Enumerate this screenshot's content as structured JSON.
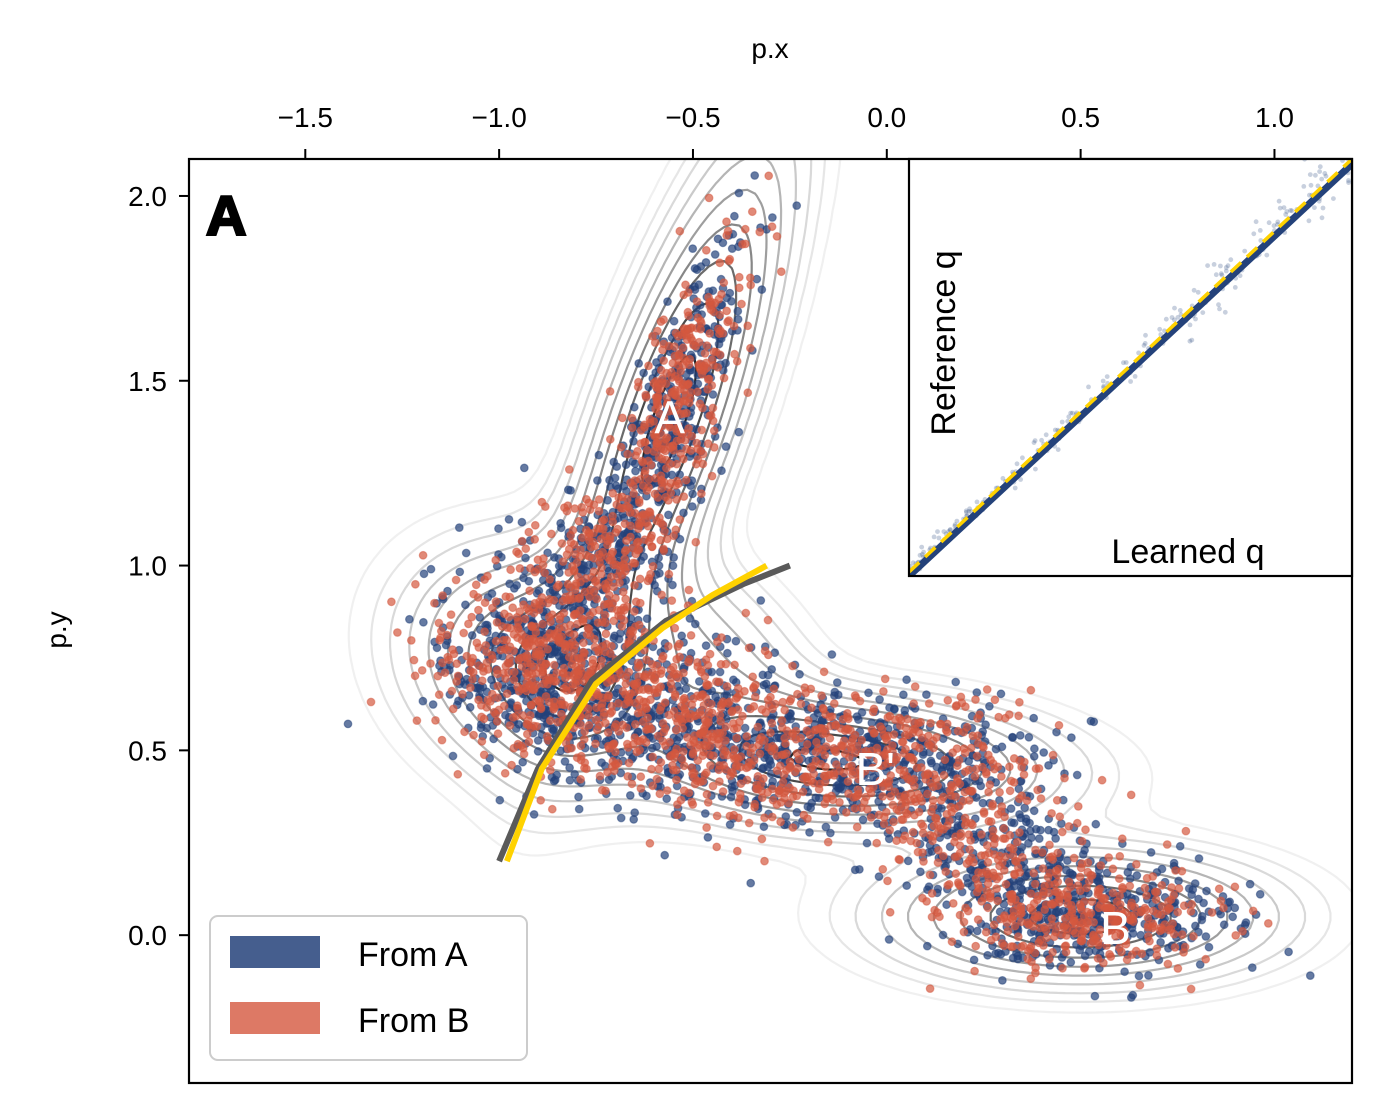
{
  "chart_data": {
    "type": "scatter",
    "panel_label": "A",
    "xlabel": "p.x",
    "ylabel": "p.y",
    "xlim": [
      -1.8,
      1.2
    ],
    "ylim": [
      -0.4,
      2.1
    ],
    "x_ticks": [
      -1.5,
      -1.0,
      -0.5,
      0.0,
      0.5,
      1.0
    ],
    "x_tick_labels": [
      "−1.5",
      "−1.0",
      "−0.5",
      "0.0",
      "0.5",
      "1.0"
    ],
    "y_ticks": [
      2.0,
      1.5,
      1.0,
      0.5,
      0.0
    ],
    "y_tick_labels": [
      "2.0",
      "1.5",
      "1.0",
      "0.5",
      "0.0"
    ],
    "basins": [
      {
        "label": "A",
        "x": -0.56,
        "y": 1.4
      },
      {
        "label": "B'",
        "x": -0.03,
        "y": 0.45
      },
      {
        "label": "B",
        "x": 0.59,
        "y": 0.02
      }
    ],
    "series": [
      {
        "name": "From A",
        "color": "#24427a"
      },
      {
        "name": "From B",
        "color": "#d4583f"
      }
    ],
    "isocommittor_reference": {
      "color": "#5a5a5a",
      "points": [
        [
          -1.0,
          0.2
        ],
        [
          -0.9,
          0.45
        ],
        [
          -0.76,
          0.69
        ],
        [
          -0.57,
          0.85
        ],
        [
          -0.37,
          0.95
        ],
        [
          -0.25,
          1.0
        ]
      ]
    },
    "isocommittor_learned": {
      "color": "#ffd200",
      "points": [
        [
          -0.98,
          0.2
        ],
        [
          -0.89,
          0.45
        ],
        [
          -0.75,
          0.68
        ],
        [
          -0.58,
          0.83
        ],
        [
          -0.45,
          0.92
        ],
        [
          -0.31,
          1.0
        ]
      ]
    },
    "legend": {
      "location": "lower-left",
      "entries": [
        "From A",
        "From B"
      ]
    },
    "inset": {
      "type": "scatter",
      "xlabel": "Learned q",
      "ylabel": "Reference q",
      "xlim": [
        0,
        1
      ],
      "ylim": [
        0,
        1
      ],
      "diagonal_color": "#ffd200",
      "point_color": "#24427a"
    }
  }
}
